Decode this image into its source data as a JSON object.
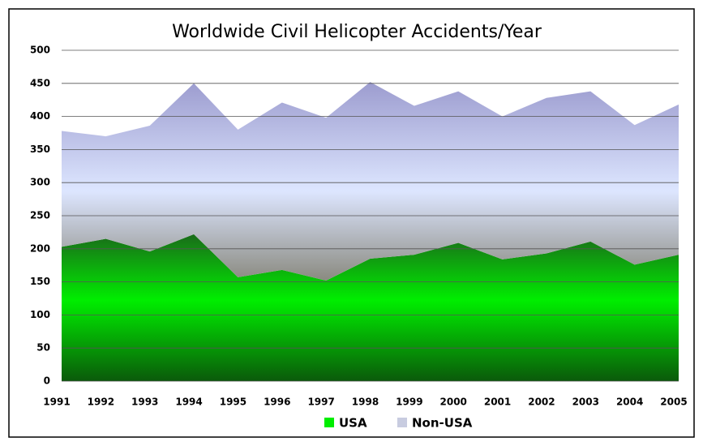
{
  "chart_data": {
    "type": "stacked-area",
    "title": "Worldwide Civil Helicopter Accidents/Year",
    "categories": [
      "1991",
      "1992",
      "1993",
      "1994",
      "1995",
      "1996",
      "1997",
      "1998",
      "1999",
      "2000",
      "2001",
      "2002",
      "2003",
      "2004",
      "2005"
    ],
    "series": [
      {
        "name": "USA",
        "color": "#00ee00",
        "values": [
          203,
          215,
          196,
          222,
          157,
          168,
          152,
          185,
          191,
          209,
          184,
          193,
          211,
          176,
          191
        ]
      },
      {
        "name": "Non-USA",
        "color": "#9c9ccf",
        "values": [
          175,
          155,
          190,
          228,
          223,
          253,
          246,
          267,
          225,
          229,
          216,
          235,
          227,
          211,
          227
        ]
      }
    ],
    "ylim": [
      0,
      500
    ],
    "yticks": [
      0,
      50,
      100,
      150,
      200,
      250,
      300,
      350,
      400,
      450,
      500
    ],
    "grid": true,
    "legend": "bottom"
  }
}
